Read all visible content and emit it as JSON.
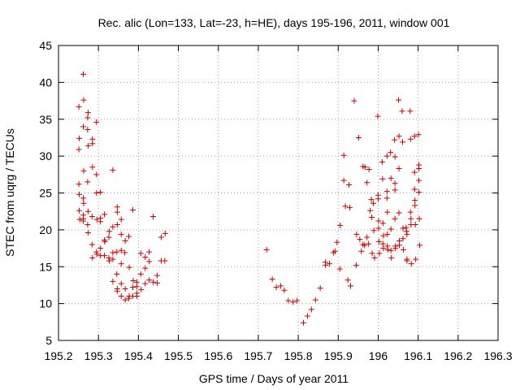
{
  "chart_data": {
    "type": "scatter",
    "title": "Rec. alic (Lon=133, Lat=-23, h=HE), days 195-196, 2011, window 001",
    "xlabel": "GPS time / Days of year 2011",
    "ylabel": "STEC from uqrg / TECUs",
    "xlim": [
      195.2,
      196.3
    ],
    "ylim": [
      5,
      45
    ],
    "xticks": [
      195.2,
      195.3,
      195.4,
      195.5,
      195.6,
      195.7,
      195.8,
      195.9,
      196,
      196.1,
      196.2,
      196.3
    ],
    "xtick_labels": [
      "195.2",
      "195.3",
      "195.4",
      "195.5",
      "195.6",
      "195.7",
      "195.8",
      "195.9",
      "196",
      "196.1",
      "196.2",
      "196.3"
    ],
    "yticks": [
      5,
      10,
      15,
      20,
      25,
      30,
      35,
      40,
      45
    ],
    "ytick_labels": [
      "5",
      "10",
      "15",
      "20",
      "25",
      "30",
      "35",
      "40",
      "45"
    ],
    "grid": true,
    "marker": "+",
    "series": [
      {
        "color": "#cc0000",
        "points": [
          [
            195.251,
            36.7
          ],
          [
            195.252,
            32.4
          ],
          [
            195.251,
            30.9
          ],
          [
            195.251,
            26.2
          ],
          [
            195.252,
            24.8
          ],
          [
            195.252,
            22.6
          ],
          [
            195.253,
            21.4
          ],
          [
            195.262,
            41.1
          ],
          [
            195.263,
            37.6
          ],
          [
            195.262,
            34.0
          ],
          [
            195.263,
            28.0
          ],
          [
            195.262,
            24.3
          ],
          [
            195.263,
            23.6
          ],
          [
            195.262,
            22.0
          ],
          [
            195.262,
            21.5
          ],
          [
            195.262,
            21.2
          ],
          [
            195.274,
            35.9
          ],
          [
            195.273,
            35.2
          ],
          [
            195.273,
            33.6
          ],
          [
            195.274,
            31.4
          ],
          [
            195.273,
            26.5
          ],
          [
            195.274,
            22.5
          ],
          [
            195.273,
            20.7
          ],
          [
            195.274,
            19.6
          ],
          [
            195.285,
            32.3
          ],
          [
            195.285,
            31.7
          ],
          [
            195.285,
            28.5
          ],
          [
            195.284,
            21.8
          ],
          [
            195.284,
            18.0
          ],
          [
            195.285,
            16.2
          ],
          [
            195.295,
            34.6
          ],
          [
            195.295,
            27.5
          ],
          [
            195.295,
            25.0
          ],
          [
            195.296,
            21.4
          ],
          [
            195.295,
            17.0
          ],
          [
            195.296,
            16.7
          ],
          [
            195.305,
            25.1
          ],
          [
            195.305,
            21.6
          ],
          [
            195.305,
            21.1
          ],
          [
            195.305,
            17.5
          ],
          [
            195.305,
            16.5
          ],
          [
            195.315,
            22.1
          ],
          [
            195.315,
            18.6
          ],
          [
            195.316,
            18.4
          ],
          [
            195.315,
            16.5
          ],
          [
            195.327,
            19.8
          ],
          [
            195.326,
            16.2
          ],
          [
            195.327,
            15.8
          ],
          [
            195.326,
            19.0
          ],
          [
            195.336,
            28.1
          ],
          [
            195.336,
            20.4
          ],
          [
            195.336,
            16.9
          ],
          [
            195.336,
            16.0
          ],
          [
            195.336,
            13.0
          ],
          [
            195.347,
            23.1
          ],
          [
            195.347,
            22.4
          ],
          [
            195.347,
            20.7
          ],
          [
            195.346,
            17.0
          ],
          [
            195.346,
            14.0
          ],
          [
            195.347,
            12.0
          ],
          [
            195.347,
            11.7
          ],
          [
            195.357,
            21.4
          ],
          [
            195.357,
            19.4
          ],
          [
            195.357,
            17.2
          ],
          [
            195.357,
            15.4
          ],
          [
            195.357,
            12.7
          ],
          [
            195.357,
            11.0
          ],
          [
            195.367,
            18.5
          ],
          [
            195.366,
            16.9
          ],
          [
            195.367,
            12.0
          ],
          [
            195.367,
            10.5
          ],
          [
            195.376,
            19.1
          ],
          [
            195.377,
            14.9
          ],
          [
            195.377,
            11.0
          ],
          [
            195.376,
            10.7
          ],
          [
            195.386,
            22.7
          ],
          [
            195.387,
            13.1
          ],
          [
            195.386,
            12.2
          ],
          [
            195.386,
            11.0
          ],
          [
            195.396,
            12.9
          ],
          [
            195.396,
            12.3
          ],
          [
            195.396,
            11.4
          ],
          [
            195.396,
            11.0
          ],
          [
            195.406,
            16.8
          ],
          [
            195.406,
            14.0
          ],
          [
            195.407,
            11.9
          ],
          [
            195.417,
            16.3
          ],
          [
            195.417,
            14.8
          ],
          [
            195.417,
            12.7
          ],
          [
            195.427,
            17.0
          ],
          [
            195.427,
            15.7
          ],
          [
            195.427,
            13.2
          ],
          [
            195.437,
            21.8
          ],
          [
            195.437,
            12.9
          ],
          [
            195.447,
            13.8
          ],
          [
            195.447,
            12.8
          ],
          [
            195.457,
            19.0
          ],
          [
            195.457,
            15.8
          ],
          [
            195.467,
            19.5
          ],
          [
            195.466,
            15.8
          ],
          [
            195.721,
            17.3
          ],
          [
            195.735,
            13.3
          ],
          [
            195.745,
            12.2
          ],
          [
            195.756,
            12.4
          ],
          [
            195.765,
            11.8
          ],
          [
            195.775,
            10.4
          ],
          [
            195.787,
            10.2
          ],
          [
            195.797,
            10.4
          ],
          [
            195.813,
            7.4
          ],
          [
            195.823,
            8.3
          ],
          [
            195.833,
            9.2
          ],
          [
            195.843,
            10.5
          ],
          [
            195.855,
            12.1
          ],
          [
            195.868,
            15.6
          ],
          [
            195.868,
            15.2
          ],
          [
            195.878,
            15.4
          ],
          [
            195.888,
            16.9
          ],
          [
            195.892,
            17.1
          ],
          [
            195.897,
            18.3
          ],
          [
            195.904,
            14.7
          ],
          [
            195.905,
            20.6
          ],
          [
            195.914,
            30.1
          ],
          [
            195.914,
            26.7
          ],
          [
            195.918,
            23.2
          ],
          [
            195.924,
            13.2
          ],
          [
            195.927,
            26.1
          ],
          [
            195.929,
            23.0
          ],
          [
            195.931,
            12.4
          ],
          [
            195.94,
            37.5
          ],
          [
            195.946,
            19.4
          ],
          [
            195.945,
            15.2
          ],
          [
            195.951,
            32.5
          ],
          [
            195.954,
            18.7
          ],
          [
            195.958,
            17.1
          ],
          [
            195.962,
            28.6
          ],
          [
            195.962,
            18.0
          ],
          [
            195.967,
            28.5
          ],
          [
            195.966,
            17.9
          ],
          [
            195.972,
            26.4
          ],
          [
            195.972,
            19.0
          ],
          [
            195.977,
            28.2
          ],
          [
            195.976,
            18.1
          ],
          [
            195.98,
            22.6
          ],
          [
            195.983,
            24.1
          ],
          [
            195.984,
            21.7
          ],
          [
            195.985,
            16.8
          ],
          [
            195.988,
            23.6
          ],
          [
            195.989,
            19.9
          ],
          [
            195.991,
            16.2
          ],
          [
            195.999,
            35.4
          ],
          [
            196.0,
            24.7
          ],
          [
            196.0,
            24.2
          ],
          [
            196.001,
            21.2
          ],
          [
            196.001,
            20.2
          ],
          [
            196.002,
            18.4
          ],
          [
            196.003,
            16.8
          ],
          [
            196.01,
            29.2
          ],
          [
            196.011,
            26.9
          ],
          [
            196.012,
            20.9
          ],
          [
            196.012,
            18.1
          ],
          [
            196.013,
            17.5
          ],
          [
            196.013,
            19.2
          ],
          [
            196.022,
            30.0
          ],
          [
            196.022,
            25.2
          ],
          [
            196.022,
            24.3
          ],
          [
            196.023,
            22.4
          ],
          [
            196.023,
            19.4
          ],
          [
            196.023,
            17.8
          ],
          [
            196.024,
            17.3
          ],
          [
            196.031,
            30.5
          ],
          [
            196.032,
            27.0
          ],
          [
            196.032,
            20.1
          ],
          [
            196.032,
            17.2
          ],
          [
            196.033,
            16.2
          ],
          [
            196.041,
            32.2
          ],
          [
            196.042,
            29.9
          ],
          [
            196.042,
            26.3
          ],
          [
            196.042,
            25.4
          ],
          [
            196.042,
            21.5
          ],
          [
            196.043,
            17.8
          ],
          [
            196.043,
            17.5
          ],
          [
            196.051,
            37.6
          ],
          [
            196.052,
            32.7
          ],
          [
            196.052,
            28.3
          ],
          [
            196.052,
            22.3
          ],
          [
            196.053,
            18.5
          ],
          [
            196.053,
            17.9
          ],
          [
            196.06,
            36.1
          ],
          [
            196.061,
            31.9
          ],
          [
            196.062,
            20.2
          ],
          [
            196.062,
            18.8
          ],
          [
            196.063,
            17.3
          ],
          [
            196.07,
            20.3
          ],
          [
            196.071,
            19.8
          ],
          [
            196.072,
            19.4
          ],
          [
            196.072,
            15.8
          ],
          [
            196.072,
            16.0
          ],
          [
            196.08,
            36.1
          ],
          [
            196.081,
            32.3
          ],
          [
            196.081,
            22.4
          ],
          [
            196.082,
            21.5
          ],
          [
            196.082,
            20.7
          ],
          [
            196.083,
            15.4
          ],
          [
            196.091,
            32.7
          ],
          [
            196.091,
            27.8
          ],
          [
            196.091,
            25.5
          ],
          [
            196.092,
            24.0
          ],
          [
            196.092,
            23.3
          ],
          [
            196.093,
            20.7
          ],
          [
            196.094,
            16.0
          ],
          [
            196.101,
            32.9
          ],
          [
            196.102,
            28.8
          ],
          [
            196.102,
            28.3
          ],
          [
            196.102,
            26.7
          ],
          [
            196.102,
            25.1
          ],
          [
            196.103,
            21.5
          ],
          [
            196.104,
            17.9
          ]
        ]
      }
    ]
  }
}
